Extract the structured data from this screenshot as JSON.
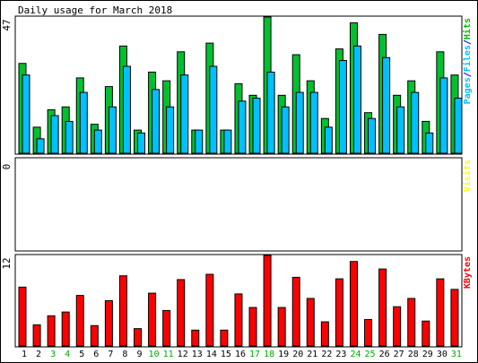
{
  "chart_data": {
    "type": "bar",
    "title": "Daily usage for March 2018",
    "categories": [
      "1",
      "2",
      "3",
      "4",
      "5",
      "6",
      "7",
      "8",
      "9",
      "10",
      "11",
      "12",
      "13",
      "14",
      "15",
      "16",
      "17",
      "18",
      "19",
      "20",
      "21",
      "22",
      "23",
      "24",
      "25",
      "26",
      "27",
      "28",
      "29",
      "30",
      "31"
    ],
    "weekend_days": [
      3,
      4,
      10,
      11,
      17,
      18,
      24,
      25,
      31
    ],
    "panels": [
      {
        "id": "hits",
        "ymax_label": "47",
        "ymax": 47,
        "legend": [
          {
            "text": "Pages",
            "color": "#00c0ff"
          },
          {
            "text": "/",
            "color": "#0000ff"
          },
          {
            "text": "Files",
            "color": "#00c0ff"
          },
          {
            "text": "/",
            "color": "#0000ff"
          },
          {
            "text": "Hits",
            "color": "#00c000"
          }
        ],
        "series": [
          {
            "name": "Hits",
            "color": "#00c030",
            "values": [
              31,
              9,
              15,
              16,
              26,
              10,
              23,
              37,
              8,
              28,
              25,
              35,
              8,
              38,
              8,
              24,
              20,
              47,
              20,
              34,
              25,
              12,
              36,
              45,
              14,
              41,
              20,
              25,
              11,
              35,
              27
            ]
          },
          {
            "name": "Files",
            "color": "#00c0ff",
            "values": [
              27,
              5,
              13,
              11,
              21,
              8,
              16,
              30,
              7,
              22,
              16,
              27,
              8,
              30,
              8,
              18,
              19,
              28,
              16,
              21,
              21,
              9,
              32,
              37,
              12,
              33,
              16,
              21,
              7,
              26,
              19
            ]
          }
        ]
      },
      {
        "id": "visits",
        "ymax_label": "0",
        "ymax": 0,
        "legend": [
          {
            "text": "Visits",
            "color": "#ffff00"
          }
        ],
        "series": [
          {
            "name": "Visits",
            "color": "#ffff00",
            "values": [
              0,
              0,
              0,
              0,
              0,
              0,
              0,
              0,
              0,
              0,
              0,
              0,
              0,
              0,
              0,
              0,
              0,
              0,
              0,
              0,
              0,
              0,
              0,
              0,
              0,
              0,
              0,
              0,
              0,
              0,
              0
            ]
          }
        ]
      },
      {
        "id": "kbytes",
        "ymax_label": "12",
        "ymax": 12,
        "legend": [
          {
            "text": "KBytes",
            "color": "#ff0000"
          }
        ],
        "series": [
          {
            "name": "KBytes",
            "color": "#ff0000",
            "values": [
              7.8,
              2.8,
              4.0,
              4.5,
              6.7,
              2.7,
              6.0,
              9.3,
              2.3,
              7.0,
              4.7,
              8.8,
              2.1,
              9.5,
              2.1,
              6.9,
              5.1,
              12.5,
              5.1,
              9.1,
              6.3,
              3.2,
              8.9,
              11.2,
              3.5,
              10.2,
              5.2,
              6.3,
              3.3,
              8.9,
              7.5
            ]
          }
        ]
      }
    ]
  }
}
